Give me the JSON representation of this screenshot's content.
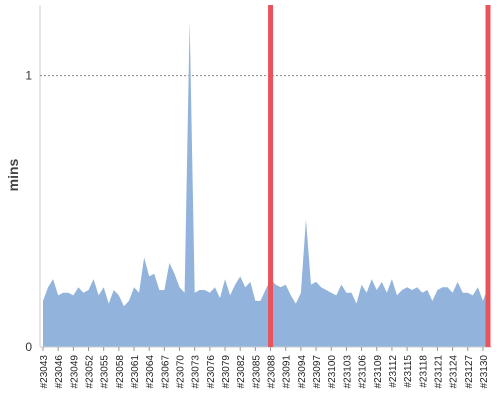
{
  "chart_data": {
    "type": "area",
    "y_label": "mins",
    "categories": [
      "#23043",
      null,
      null,
      "#23046",
      null,
      null,
      "#23049",
      null,
      null,
      "#23052",
      null,
      null,
      "#23055",
      null,
      null,
      "#23058",
      null,
      null,
      "#23061",
      null,
      null,
      "#23064",
      null,
      null,
      "#23067",
      null,
      null,
      "#23070",
      null,
      null,
      "#23073",
      null,
      null,
      "#23076",
      null,
      null,
      "#23079",
      null,
      null,
      "#23082",
      null,
      null,
      "#23085",
      null,
      null,
      "#23088",
      null,
      null,
      "#23091",
      null,
      null,
      "#23094",
      null,
      null,
      "#23097",
      null,
      null,
      "#23100",
      null,
      null,
      "#23103",
      null,
      null,
      "#23106",
      null,
      null,
      "#23109",
      null,
      null,
      "#23112",
      null,
      null,
      "#23115",
      null,
      null,
      "#23118",
      null,
      null,
      "#23121",
      null,
      null,
      "#23124",
      null,
      null,
      "#23127",
      null,
      null,
      "#23130",
      null
    ],
    "values": [
      0.17,
      0.22,
      0.25,
      0.19,
      0.2,
      0.2,
      0.19,
      0.22,
      0.2,
      0.21,
      0.25,
      0.19,
      0.22,
      0.16,
      0.21,
      0.19,
      0.15,
      0.17,
      0.22,
      0.2,
      0.33,
      0.26,
      0.27,
      0.21,
      0.21,
      0.31,
      0.27,
      0.22,
      0.2,
      1.2,
      0.2,
      0.21,
      0.21,
      0.2,
      0.22,
      0.18,
      0.25,
      0.19,
      0.23,
      0.26,
      0.22,
      0.24,
      0.17,
      0.17,
      0.21,
      0.25,
      0.23,
      0.22,
      0.23,
      0.19,
      0.16,
      0.2,
      0.47,
      0.23,
      0.24,
      0.22,
      0.21,
      0.2,
      0.19,
      0.23,
      0.2,
      0.2,
      0.16,
      0.23,
      0.2,
      0.25,
      0.21,
      0.24,
      0.2,
      0.25,
      0.19,
      0.21,
      0.22,
      0.21,
      0.22,
      0.2,
      0.21,
      0.17,
      0.21,
      0.22,
      0.22,
      0.2,
      0.24,
      0.2,
      0.2,
      0.19,
      0.22,
      0.17,
      0.22
    ],
    "color": "#92b4dc",
    "highlights": [
      45,
      88
    ],
    "highlight_color": "#e8545a",
    "ylim": [
      0,
      1.26
    ],
    "yticks": [
      0,
      1
    ],
    "grid": true
  }
}
